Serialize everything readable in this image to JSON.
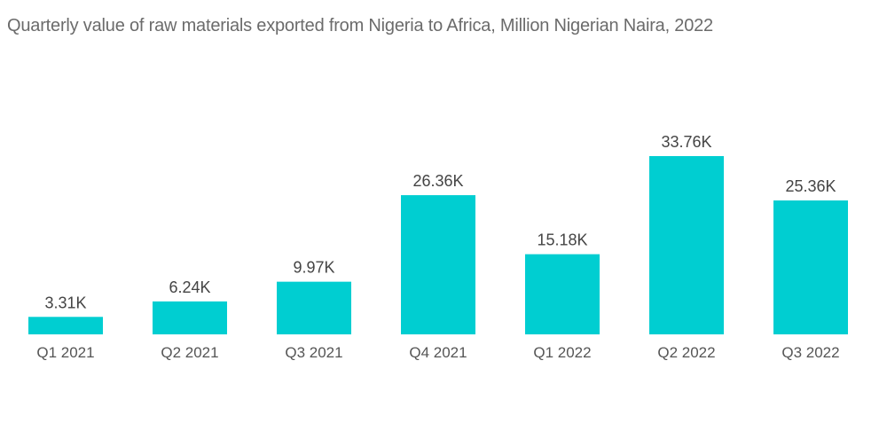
{
  "chart_data": {
    "type": "bar",
    "title": "Quarterly value of raw materials exported from Nigeria to Africa, Million Nigerian Naira, 2022",
    "categories": [
      "Q1 2021",
      "Q2 2021",
      "Q3 2021",
      "Q4 2021",
      "Q1 2022",
      "Q2 2022",
      "Q3 2022"
    ],
    "values": [
      3.31,
      6.24,
      9.97,
      26.36,
      15.18,
      33.76,
      25.36
    ],
    "data_labels": [
      "3.31K",
      "6.24K",
      "9.97K",
      "26.36K",
      "15.18K",
      "33.76K",
      "25.36K"
    ],
    "value_unit": "K",
    "ylim": [
      0,
      33.76
    ],
    "grid": false,
    "bar_color": "#00ced1"
  }
}
